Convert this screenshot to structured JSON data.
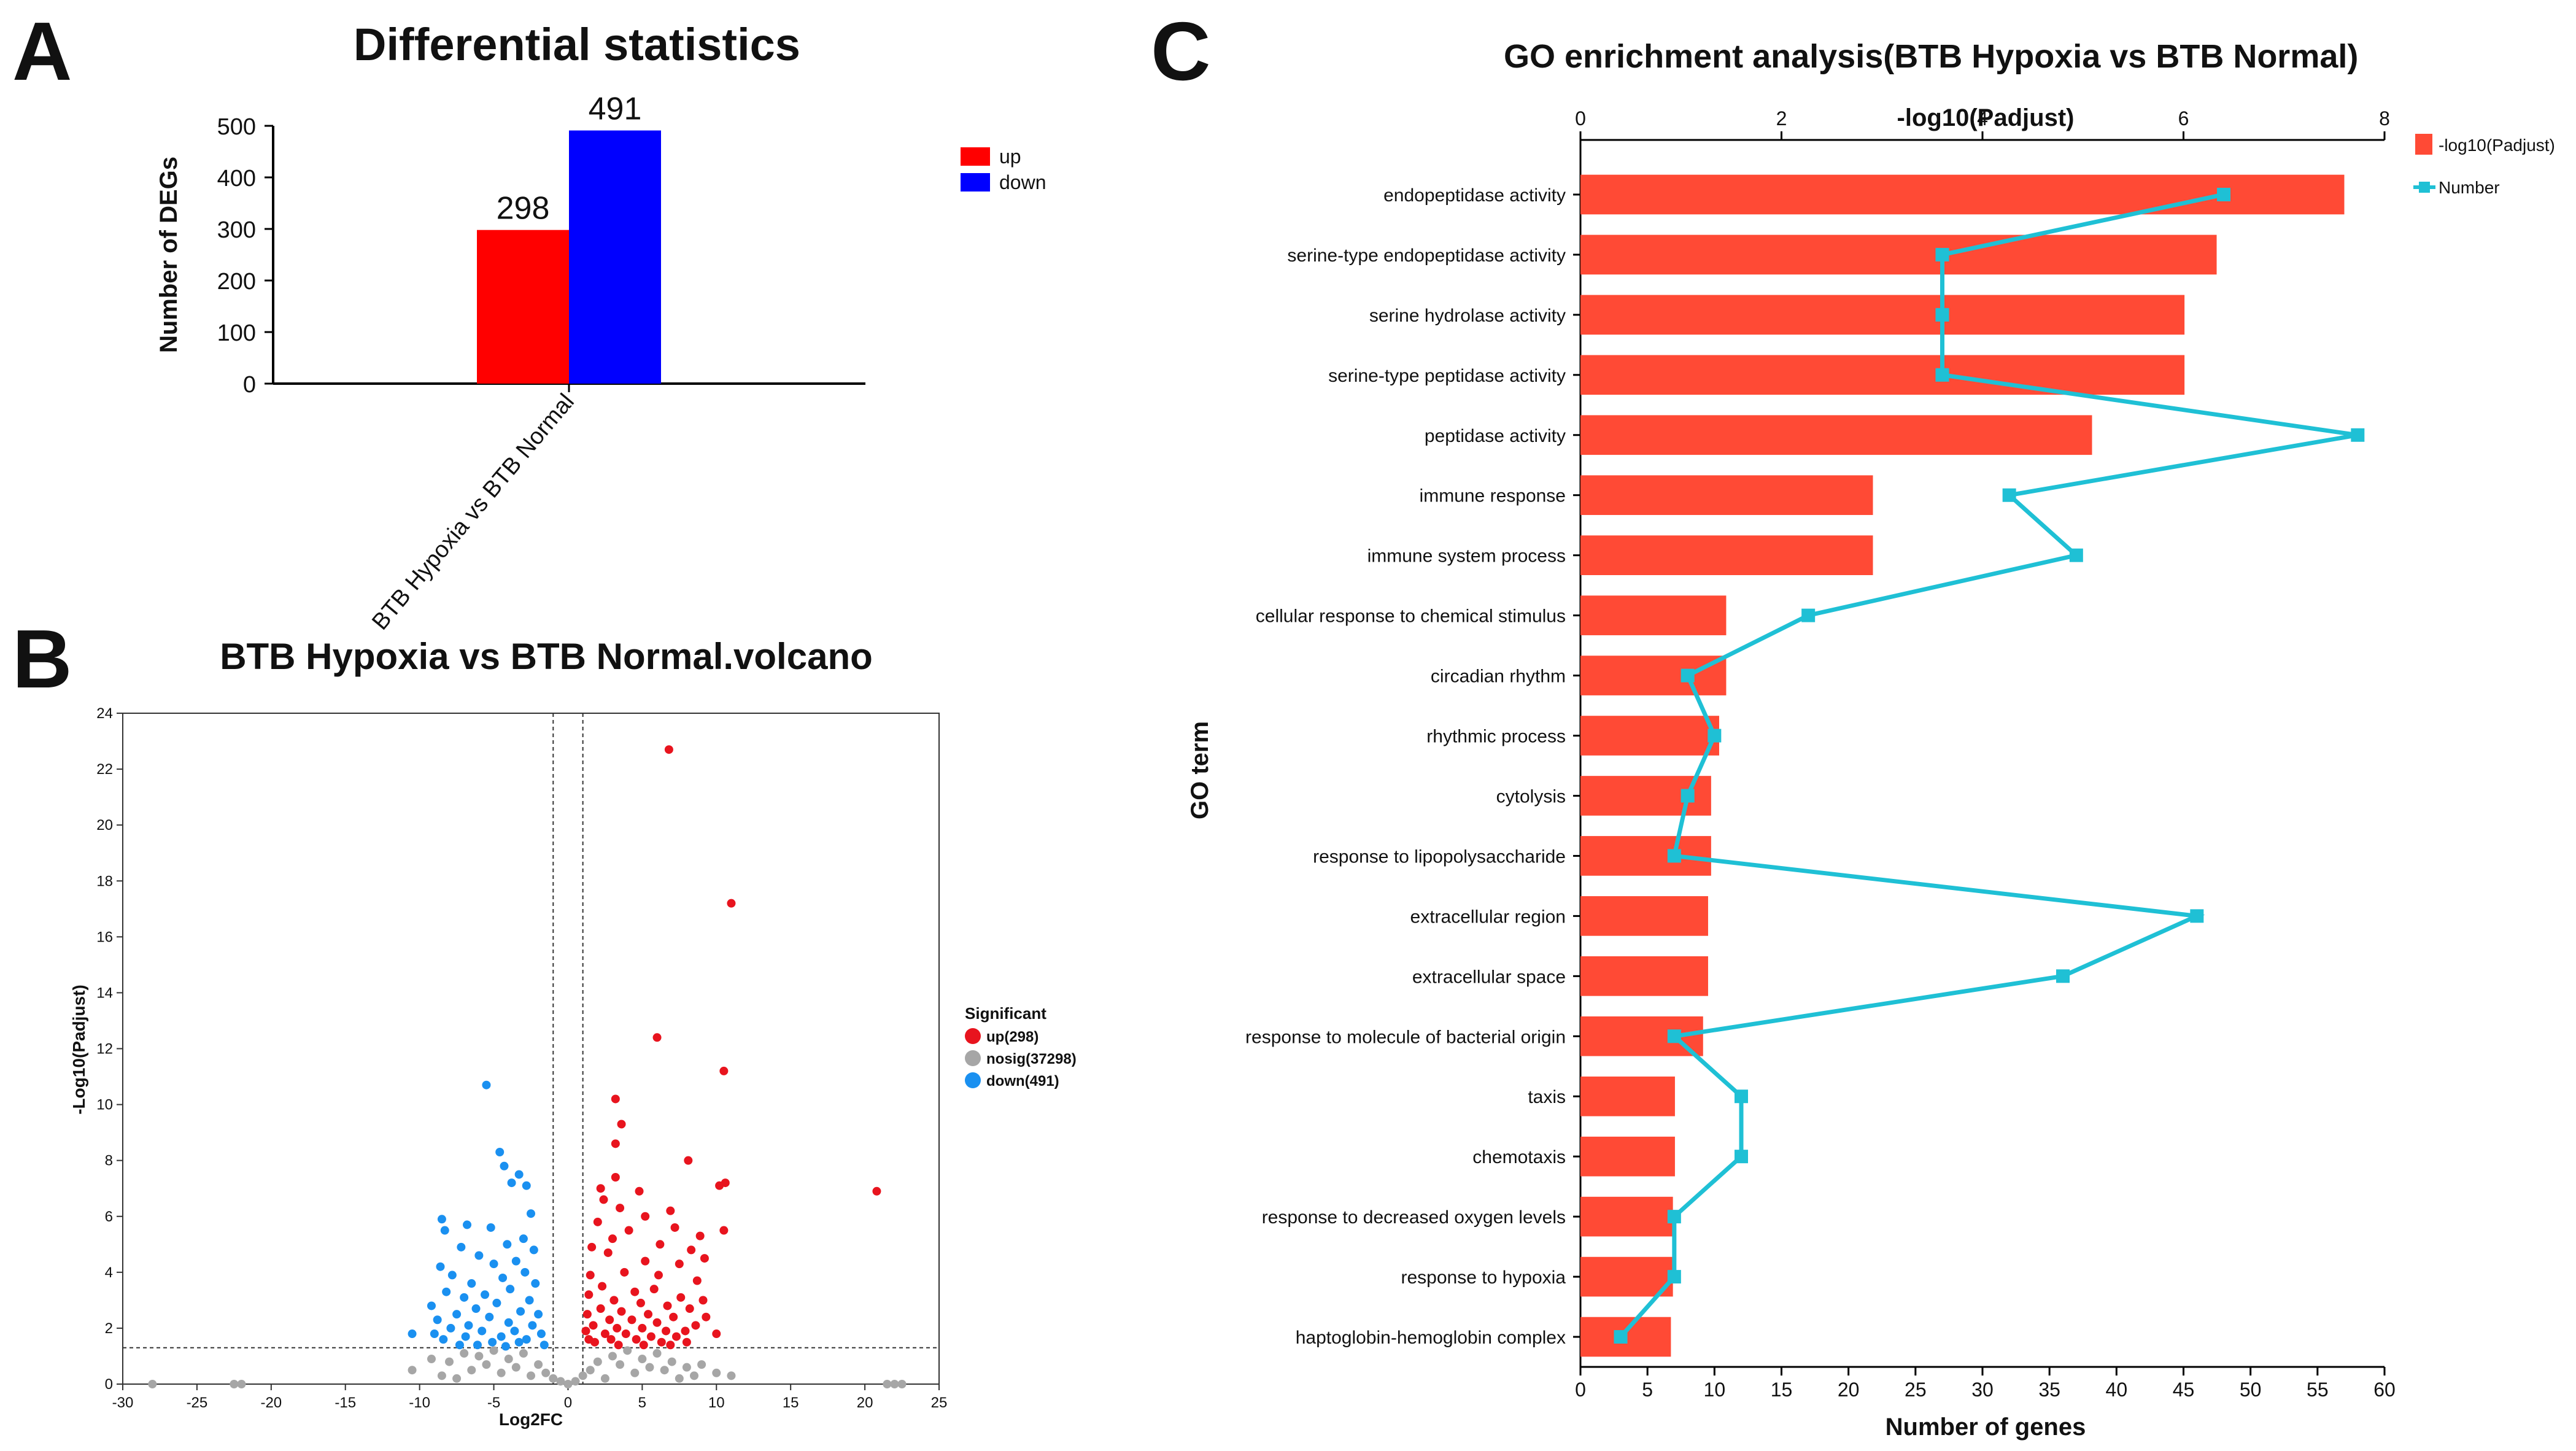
{
  "panels": [
    {
      "letter": "A"
    },
    {
      "letter": "B"
    },
    {
      "letter": "C"
    }
  ],
  "chart_data": [
    {
      "id": "A",
      "type": "bar",
      "title": "Differential statistics",
      "ylabel": "Number of DEGs",
      "xlabel": "",
      "categories": [
        "BTB Hypoxia vs BTB Normal"
      ],
      "series": [
        {
          "name": "up",
          "color": "#ff0000",
          "values": [
            298
          ]
        },
        {
          "name": "down",
          "color": "#0000ff",
          "values": [
            491
          ]
        }
      ],
      "ylim": [
        0,
        500
      ],
      "yticks": [
        0,
        100,
        200,
        300,
        400,
        500
      ],
      "grid": false,
      "legend_position": "top-right"
    },
    {
      "id": "B",
      "type": "scatter",
      "title": "BTB Hypoxia vs BTB Normal.volcano",
      "xlabel": "Log2FC",
      "ylabel": "-Log10(Padjust)",
      "xlim": [
        -30,
        25
      ],
      "ylim": [
        0,
        24
      ],
      "xticks": [
        -30,
        -25,
        -20,
        -15,
        -10,
        -5,
        0,
        5,
        10,
        15,
        20,
        25
      ],
      "yticks": [
        0,
        2,
        4,
        6,
        8,
        10,
        12,
        14,
        16,
        18,
        20,
        22,
        24
      ],
      "threshold_lines": {
        "log2fc": [
          -1,
          1
        ],
        "neg_log10_padj": 1.3
      },
      "legend_title": "Significant",
      "legend_position": "right",
      "groups": [
        {
          "name": "up(298)",
          "key": "up",
          "color": "#e8141e",
          "points": [
            [
              6.8,
              22.7
            ],
            [
              11,
              17.2
            ],
            [
              20.8,
              6.9
            ],
            [
              6,
              12.4
            ],
            [
              10.5,
              11.2
            ],
            [
              3.2,
              10.2
            ],
            [
              3.6,
              9.3
            ],
            [
              3.2,
              8.6
            ],
            [
              8.1,
              8
            ],
            [
              10.2,
              7.1
            ],
            [
              10.6,
              7.2
            ],
            [
              10.5,
              5.5
            ],
            [
              3.2,
              7.4
            ],
            [
              2.2,
              7
            ],
            [
              2.4,
              6.6
            ],
            [
              4.8,
              6.9
            ],
            [
              6.9,
              6.2
            ],
            [
              5.2,
              6
            ],
            [
              3.5,
              6.3
            ],
            [
              7.2,
              5.6
            ],
            [
              8.9,
              5.3
            ],
            [
              2,
              5.8
            ],
            [
              3,
              5.2
            ],
            [
              4.1,
              5.5
            ],
            [
              6.2,
              5
            ],
            [
              8.3,
              4.8
            ],
            [
              9.2,
              4.5
            ],
            [
              1.6,
              4.9
            ],
            [
              2.7,
              4.7
            ],
            [
              5.2,
              4.4
            ],
            [
              7.5,
              4.3
            ],
            [
              3.8,
              4
            ],
            [
              6.1,
              3.9
            ],
            [
              1.5,
              3.9
            ],
            [
              8.7,
              3.7
            ],
            [
              2.3,
              3.5
            ],
            [
              4.5,
              3.3
            ],
            [
              5.8,
              3.4
            ],
            [
              7.6,
              3.1
            ],
            [
              9.1,
              3
            ],
            [
              1.4,
              3.2
            ],
            [
              3.1,
              3
            ],
            [
              4.9,
              2.9
            ],
            [
              6.7,
              2.8
            ],
            [
              8.2,
              2.7
            ],
            [
              2.2,
              2.7
            ],
            [
              3.6,
              2.6
            ],
            [
              5.4,
              2.5
            ],
            [
              7.1,
              2.4
            ],
            [
              1.3,
              2.5
            ],
            [
              2.8,
              2.3
            ],
            [
              4.3,
              2.3
            ],
            [
              6,
              2.2
            ],
            [
              8.6,
              2.1
            ],
            [
              1.7,
              2.1
            ],
            [
              3.3,
              2
            ],
            [
              5,
              2
            ],
            [
              6.6,
              1.9
            ],
            [
              7.9,
              1.9
            ],
            [
              1.2,
              1.9
            ],
            [
              2.5,
              1.8
            ],
            [
              3.9,
              1.8
            ],
            [
              5.6,
              1.7
            ],
            [
              7.3,
              1.7
            ],
            [
              1.4,
              1.6
            ],
            [
              2.9,
              1.6
            ],
            [
              4.6,
              1.6
            ],
            [
              6.3,
              1.5
            ],
            [
              8,
              1.5
            ],
            [
              1.8,
              1.5
            ],
            [
              3.4,
              1.4
            ],
            [
              5.1,
              1.4
            ],
            [
              6.9,
              1.4
            ],
            [
              9.3,
              2.4
            ],
            [
              10,
              1.8
            ]
          ]
        },
        {
          "name": "nosig(37298)",
          "key": "nosig",
          "color": "#a6a6a6",
          "points": [
            [
              -28,
              0
            ],
            [
              -22.5,
              0
            ],
            [
              -22,
              0
            ],
            [
              21.5,
              0
            ],
            [
              22,
              0
            ],
            [
              22.5,
              0
            ],
            [
              -10.5,
              0.5
            ],
            [
              -9.2,
              0.9
            ],
            [
              -8,
              0.8
            ],
            [
              -7,
              1.1
            ],
            [
              -6,
              1
            ],
            [
              -5,
              1.2
            ],
            [
              -4,
              0.9
            ],
            [
              -3,
              1.1
            ],
            [
              -2,
              0.7
            ],
            [
              -1.5,
              0.4
            ],
            [
              -1,
              0.2
            ],
            [
              0,
              0
            ],
            [
              1,
              0.3
            ],
            [
              1.5,
              0.5
            ],
            [
              2,
              0.8
            ],
            [
              3,
              1
            ],
            [
              4,
              1.2
            ],
            [
              5,
              0.9
            ],
            [
              6,
              1.1
            ],
            [
              7,
              0.8
            ],
            [
              8,
              0.6
            ],
            [
              9,
              0.7
            ],
            [
              10,
              0.4
            ],
            [
              11,
              0.3
            ],
            [
              -8.5,
              0.3
            ],
            [
              -6.5,
              0.5
            ],
            [
              -4.5,
              0.4
            ],
            [
              -2.5,
              0.3
            ],
            [
              2.5,
              0.2
            ],
            [
              4.5,
              0.4
            ],
            [
              6.5,
              0.5
            ],
            [
              8.5,
              0.3
            ],
            [
              -5.5,
              0.7
            ],
            [
              5.5,
              0.6
            ],
            [
              -3.5,
              0.6
            ],
            [
              3.5,
              0.7
            ],
            [
              -7.5,
              0.2
            ],
            [
              7.5,
              0.2
            ],
            [
              -0.5,
              0.1
            ],
            [
              0.5,
              0.1
            ]
          ]
        },
        {
          "name": "down(491)",
          "key": "down",
          "color": "#1a90f0",
          "points": [
            [
              -5.5,
              10.7
            ],
            [
              -4.6,
              8.3
            ],
            [
              -3.3,
              7.5
            ],
            [
              -4.3,
              7.8
            ],
            [
              -2.8,
              7.1
            ],
            [
              -3.8,
              7.2
            ],
            [
              -8.5,
              5.9
            ],
            [
              -8.3,
              5.5
            ],
            [
              -2.5,
              6.1
            ],
            [
              -6.8,
              5.7
            ],
            [
              -3,
              5.2
            ],
            [
              -5.2,
              5.6
            ],
            [
              -4.1,
              5
            ],
            [
              -7.2,
              4.9
            ],
            [
              -2.3,
              4.8
            ],
            [
              -6,
              4.6
            ],
            [
              -3.5,
              4.4
            ],
            [
              -8.6,
              4.2
            ],
            [
              -5,
              4.3
            ],
            [
              -2.9,
              4
            ],
            [
              -7.8,
              3.9
            ],
            [
              -4.4,
              3.8
            ],
            [
              -6.5,
              3.6
            ],
            [
              -2.2,
              3.6
            ],
            [
              -3.9,
              3.4
            ],
            [
              -8.2,
              3.3
            ],
            [
              -5.6,
              3.2
            ],
            [
              -7,
              3.1
            ],
            [
              -2.6,
              3
            ],
            [
              -4.8,
              2.9
            ],
            [
              -9.2,
              2.8
            ],
            [
              -6.2,
              2.7
            ],
            [
              -3.2,
              2.6
            ],
            [
              -7.5,
              2.5
            ],
            [
              -2,
              2.5
            ],
            [
              -5.3,
              2.4
            ],
            [
              -8.8,
              2.3
            ],
            [
              -4,
              2.2
            ],
            [
              -6.7,
              2.1
            ],
            [
              -2.4,
              2.1
            ],
            [
              -7.9,
              2
            ],
            [
              -3.6,
              1.9
            ],
            [
              -5.8,
              1.9
            ],
            [
              -9,
              1.8
            ],
            [
              -1.8,
              1.8
            ],
            [
              -4.5,
              1.7
            ],
            [
              -6.9,
              1.7
            ],
            [
              -2.8,
              1.6
            ],
            [
              -8.4,
              1.6
            ],
            [
              -5.1,
              1.5
            ],
            [
              -3.3,
              1.5
            ],
            [
              -7.3,
              1.4
            ],
            [
              -1.6,
              1.4
            ],
            [
              -10.5,
              1.8
            ],
            [
              -6.1,
              1.4
            ],
            [
              -4.2,
              1.35
            ]
          ]
        }
      ]
    },
    {
      "id": "C",
      "type": "bar",
      "orientation": "horizontal",
      "title": "GO enrichment analysis",
      "title_suffix": "(BTB Hypoxia vs BTB Normal)",
      "top_axis_label": "-log10(Padjust)",
      "xlabel": "Number of genes",
      "ylabel": "GO term",
      "top_axis_range": [
        0,
        8
      ],
      "top_axis_ticks": [
        0,
        2,
        4,
        6,
        8
      ],
      "bottom_axis_range": [
        0,
        60
      ],
      "bottom_axis_ticks": [
        0,
        5,
        10,
        15,
        20,
        25,
        30,
        35,
        40,
        45,
        50,
        55,
        60
      ],
      "legend_position": "top-right",
      "categories": [
        "endopeptidase activity",
        "serine-type endopeptidase activity",
        "serine hydrolase activity",
        "serine-type peptidase activity",
        "peptidase activity",
        "immune response",
        "immune system process",
        "cellular response to chemical stimulus",
        "circadian rhythm",
        "rhythmic process",
        "cytolysis",
        "response to lipopolysaccharide",
        "extracellular region",
        "extracellular space",
        "response to molecule of bacterial origin",
        "taxis",
        "chemotaxis",
        "response to decreased oxygen levels",
        "response to hypoxia",
        "haptoglobin-hemoglobin complex"
      ],
      "series": [
        {
          "name": "-log10(Padjust)",
          "type": "bar",
          "axis": "top",
          "color": "#ff4a35",
          "values": [
            7.6,
            6.33,
            6.01,
            6.01,
            5.09,
            2.91,
            2.91,
            1.45,
            1.45,
            1.38,
            1.3,
            1.3,
            1.27,
            1.27,
            1.22,
            0.94,
            0.94,
            0.92,
            0.92,
            0.9
          ]
        },
        {
          "name": "Number",
          "type": "line",
          "axis": "bottom",
          "color": "#1fc0d5",
          "values": [
            48,
            27,
            27,
            27,
            58,
            32,
            37,
            17,
            8,
            10,
            8,
            7,
            46,
            36,
            7,
            12,
            12,
            7,
            7,
            3
          ]
        }
      ]
    }
  ]
}
